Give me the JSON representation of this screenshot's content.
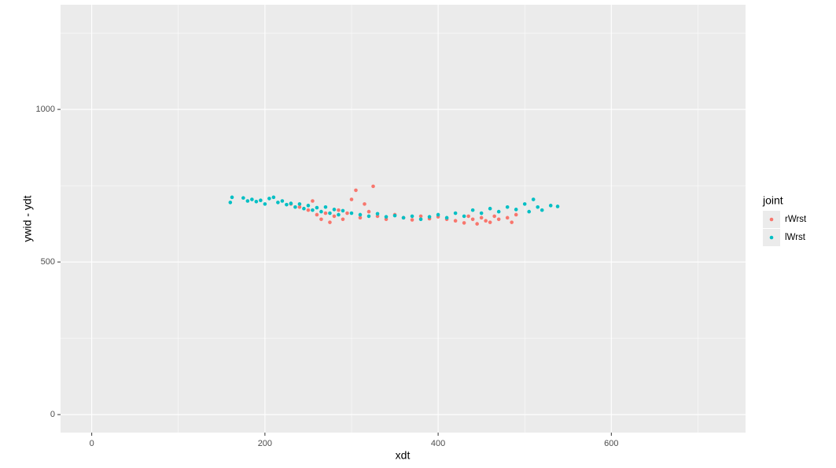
{
  "chart_data": {
    "type": "scatter",
    "x_label": "xdt",
    "y_label": "ywid - ydt",
    "legend_title": "joint",
    "legend_position": "right",
    "grid": true,
    "xlim": [
      -36,
      755
    ],
    "ylim": [
      -59,
      1343
    ],
    "xticks": [
      0,
      200,
      400,
      600
    ],
    "yticks": [
      0,
      500,
      1000
    ],
    "x_minor_grid": [
      100,
      300,
      500,
      700
    ],
    "y_minor_grid": [
      250,
      750,
      1250
    ],
    "series": [
      {
        "name": "rWrst",
        "color": "#F8766D",
        "x": [
          230,
          240,
          250,
          255,
          260,
          265,
          270,
          275,
          280,
          285,
          290,
          295,
          300,
          305,
          310,
          315,
          320,
          325,
          330,
          340,
          350,
          360,
          370,
          380,
          390,
          400,
          410,
          420,
          430,
          435,
          440,
          445,
          450,
          455,
          460,
          465,
          470,
          480,
          485,
          490
        ],
        "values": [
          690,
          680,
          670,
          700,
          655,
          640,
          660,
          630,
          650,
          670,
          640,
          660,
          705,
          735,
          645,
          690,
          665,
          748,
          650,
          640,
          655,
          645,
          638,
          650,
          642,
          648,
          640,
          635,
          628,
          650,
          640,
          625,
          645,
          635,
          630,
          650,
          640,
          645,
          630,
          655
        ]
      },
      {
        "name": "lWrst",
        "color": "#00BFC4",
        "x": [
          160,
          162,
          175,
          180,
          185,
          190,
          195,
          200,
          205,
          210,
          215,
          220,
          225,
          230,
          235,
          240,
          245,
          250,
          255,
          260,
          265,
          270,
          275,
          280,
          285,
          290,
          300,
          310,
          320,
          330,
          340,
          350,
          360,
          370,
          380,
          390,
          400,
          410,
          420,
          430,
          440,
          450,
          460,
          470,
          480,
          490,
          500,
          505,
          510,
          515,
          520,
          530,
          538
        ],
        "values": [
          695,
          712,
          710,
          700,
          705,
          698,
          702,
          690,
          708,
          712,
          695,
          700,
          688,
          692,
          680,
          690,
          675,
          685,
          670,
          678,
          665,
          680,
          660,
          672,
          655,
          668,
          660,
          655,
          650,
          658,
          648,
          652,
          645,
          650,
          640,
          648,
          655,
          645,
          660,
          650,
          670,
          660,
          675,
          665,
          680,
          672,
          690,
          665,
          705,
          680,
          670,
          685,
          682
        ]
      }
    ]
  }
}
